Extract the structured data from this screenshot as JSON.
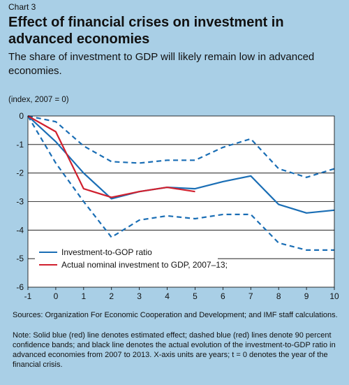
{
  "header": {
    "chart_label": "Chart 3",
    "title": "Effect of financial crises on investment in advanced economies",
    "subtitle": "The share of investment to GDP will likely remain low in advanced economies."
  },
  "footer": {
    "sources": "Sources: Organization For Economic Cooperation and Development; and IMF staff calculations.",
    "note": "Note: Solid blue (red) line denotes estimated effect; dashed blue (red) lines denote 90 percent confidence bands; and black line denotes the actual evolution of the investment-to-GDP  ratio in advanced economies from 2007 to 2013. X-axis units are years; t = 0 denotes the year of the financial crisis."
  },
  "chart_data": {
    "type": "line",
    "ylabel": "(index, 2007 = 0)",
    "xlim": [
      -1,
      10
    ],
    "ylim": [
      -6,
      0
    ],
    "x_ticks": [
      "-1",
      "0",
      "1",
      "2",
      "3",
      "4",
      "5",
      "6",
      "7",
      "8",
      "9",
      "10"
    ],
    "y_ticks": [
      "0",
      "-1",
      "-2",
      "-3",
      "-4",
      "-5",
      "-6"
    ],
    "grid": "horizontal",
    "legend_position": "bottom-left",
    "series": [
      {
        "name": "Investment-to-GOP ratio",
        "color": "#1a6eb5",
        "style": "solid",
        "x": [
          -1,
          0,
          1,
          2,
          3,
          4,
          5,
          6,
          7,
          8,
          9,
          10
        ],
        "y": [
          0,
          -0.9,
          -2.0,
          -2.9,
          -2.65,
          -2.5,
          -2.55,
          -2.3,
          -2.1,
          -3.1,
          -3.4,
          -3.3
        ]
      },
      {
        "color": "#1a6eb5",
        "style": "dashed",
        "x": [
          -1,
          0,
          1,
          2,
          3,
          4,
          5,
          6,
          7,
          8,
          9,
          10
        ],
        "y": [
          0,
          -0.2,
          -1.05,
          -1.6,
          -1.65,
          -1.55,
          -1.55,
          -1.1,
          -0.8,
          -1.85,
          -2.15,
          -1.85
        ]
      },
      {
        "color": "#1a6eb5",
        "style": "dashed",
        "x": [
          -1,
          0,
          1,
          2,
          3,
          4,
          5,
          6,
          7,
          8,
          9,
          10
        ],
        "y": [
          0,
          -1.65,
          -3.0,
          -4.25,
          -3.65,
          -3.5,
          -3.6,
          -3.45,
          -3.45,
          -4.45,
          -4.7,
          -4.7
        ]
      },
      {
        "name": "Actual nominal investment to GDP, 2007–13;",
        "color": "#d0202e",
        "style": "solid",
        "x": [
          -1,
          0,
          1,
          2,
          3,
          4,
          5
        ],
        "y": [
          0,
          -0.55,
          -2.55,
          -2.85,
          -2.65,
          -2.5,
          -2.65
        ]
      }
    ]
  }
}
